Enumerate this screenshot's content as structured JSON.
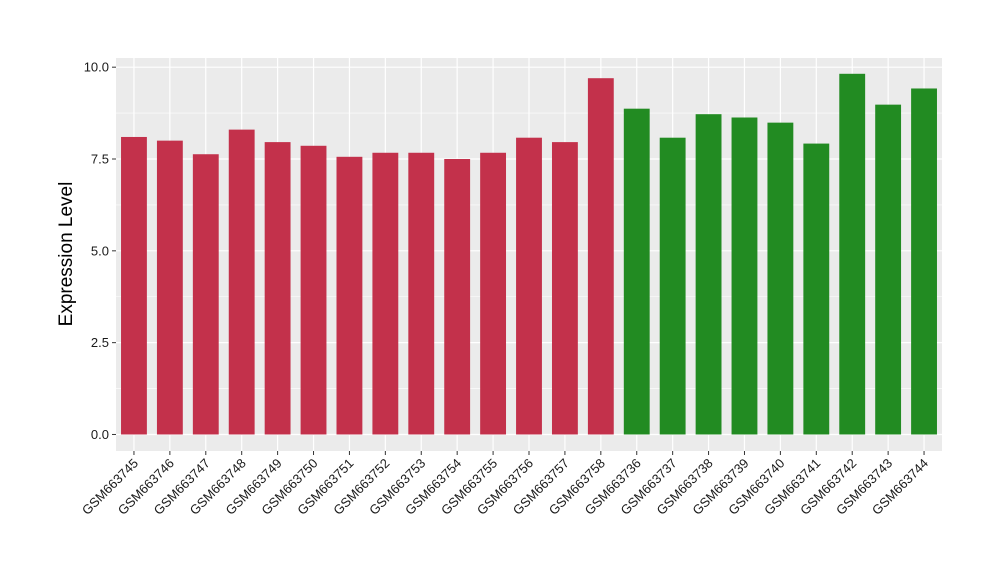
{
  "chart_data": {
    "type": "bar",
    "title": "",
    "xlabel": "",
    "ylabel": "Expression Level",
    "ylim": [
      -0.45,
      10.25
    ],
    "yticks": [
      0.0,
      2.5,
      5.0,
      7.5,
      10.0
    ],
    "ytick_labels": [
      "0.0",
      "2.5",
      "5.0",
      "7.5",
      "10.0"
    ],
    "grid": true,
    "legend": "none",
    "categories": [
      "GSM663745",
      "GSM663746",
      "GSM663747",
      "GSM663748",
      "GSM663749",
      "GSM663750",
      "GSM663751",
      "GSM663752",
      "GSM663753",
      "GSM663754",
      "GSM663755",
      "GSM663756",
      "GSM663757",
      "GSM663758",
      "GSM663736",
      "GSM663737",
      "GSM663738",
      "GSM663739",
      "GSM663740",
      "GSM663741",
      "GSM663742",
      "GSM663743",
      "GSM663744"
    ],
    "values": [
      8.1,
      8.0,
      7.63,
      8.3,
      7.96,
      7.86,
      7.56,
      7.67,
      7.67,
      7.5,
      7.67,
      8.08,
      7.96,
      9.7,
      8.87,
      8.08,
      8.72,
      8.63,
      8.49,
      7.92,
      9.82,
      8.98,
      9.42
    ],
    "groups": [
      {
        "color": "#c3314b",
        "count": 14
      },
      {
        "color": "#228b22",
        "count": 9
      }
    ],
    "panel_background": "#ebebeb",
    "grid_color": "#ffffff"
  }
}
